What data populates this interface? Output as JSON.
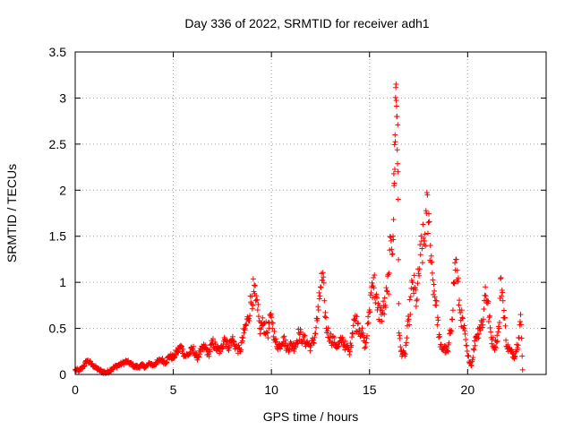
{
  "chart_data": {
    "type": "scatter",
    "title": "Day 336 of 2022, SRMTID for receiver adh1",
    "xlabel": "GPS time / hours",
    "ylabel": "SRMTID / TECUs",
    "xlim": [
      0,
      24
    ],
    "ylim": [
      0,
      3.5
    ],
    "x_ticks": [
      0,
      5,
      10,
      15,
      20
    ],
    "y_ticks": [
      0,
      0.5,
      1,
      1.5,
      2,
      2.5,
      3,
      3.5
    ],
    "x_tick_labels": [
      "0",
      "5",
      "10",
      "15",
      "20"
    ],
    "y_tick_labels": [
      "0",
      "0.5",
      "1",
      "1.5",
      "2",
      "2.5",
      "3",
      "3.5"
    ],
    "grid": true,
    "marker": "+",
    "color": "#ff0000",
    "series": [
      {
        "name": "adh1",
        "x": [
          0.0,
          0.2,
          0.4,
          0.6,
          0.8,
          1.0,
          1.2,
          1.4,
          1.6,
          1.8,
          2.0,
          2.2,
          2.4,
          2.6,
          2.8,
          3.0,
          3.2,
          3.4,
          3.6,
          3.8,
          4.0,
          4.2,
          4.4,
          4.6,
          4.8,
          5.0,
          5.2,
          5.4,
          5.6,
          5.8,
          6.0,
          6.2,
          6.4,
          6.6,
          6.8,
          7.0,
          7.2,
          7.4,
          7.6,
          7.8,
          8.0,
          8.2,
          8.4,
          8.6,
          8.8,
          9.0,
          9.1,
          9.2,
          9.3,
          9.4,
          9.6,
          9.8,
          10.0,
          10.2,
          10.4,
          10.6,
          10.8,
          11.0,
          11.2,
          11.4,
          11.6,
          11.8,
          12.0,
          12.2,
          12.4,
          12.5,
          12.6,
          12.7,
          12.8,
          13.0,
          13.2,
          13.4,
          13.6,
          13.8,
          14.0,
          14.2,
          14.4,
          14.6,
          14.8,
          15.0,
          15.1,
          15.2,
          15.4,
          15.6,
          15.8,
          15.9,
          16.0,
          16.1,
          16.2,
          16.25,
          16.3,
          16.35,
          16.4,
          16.45,
          16.5,
          16.6,
          16.8,
          17.0,
          17.2,
          17.4,
          17.6,
          17.8,
          17.9,
          18.0,
          18.1,
          18.2,
          18.4,
          18.6,
          18.8,
          19.0,
          19.2,
          19.3,
          19.4,
          19.6,
          19.8,
          20.0,
          20.2,
          20.4,
          20.6,
          20.8,
          20.9,
          21.0,
          21.2,
          21.4,
          21.6,
          21.7,
          21.8,
          22.0,
          22.2,
          22.4,
          22.6,
          22.7,
          22.8
        ],
        "y": [
          0.05,
          0.04,
          0.08,
          0.15,
          0.12,
          0.08,
          0.05,
          0.03,
          0.02,
          0.05,
          0.08,
          0.1,
          0.12,
          0.14,
          0.12,
          0.09,
          0.08,
          0.1,
          0.08,
          0.12,
          0.1,
          0.14,
          0.16,
          0.13,
          0.2,
          0.18,
          0.25,
          0.3,
          0.2,
          0.22,
          0.28,
          0.18,
          0.25,
          0.3,
          0.22,
          0.35,
          0.28,
          0.25,
          0.4,
          0.3,
          0.38,
          0.3,
          0.25,
          0.45,
          0.6,
          0.85,
          0.9,
          0.8,
          0.7,
          0.5,
          0.55,
          0.45,
          0.62,
          0.35,
          0.3,
          0.4,
          0.28,
          0.32,
          0.3,
          0.45,
          0.38,
          0.35,
          0.3,
          0.4,
          0.7,
          0.95,
          1.02,
          0.8,
          0.5,
          0.4,
          0.35,
          0.3,
          0.38,
          0.3,
          0.25,
          0.6,
          0.55,
          0.45,
          0.3,
          0.7,
          0.95,
          1.05,
          0.7,
          0.65,
          0.75,
          0.9,
          1.1,
          1.45,
          1.5,
          2.05,
          2.6,
          3.15,
          2.8,
          2.2,
          0.45,
          0.25,
          0.2,
          0.6,
          1.0,
          0.8,
          1.3,
          1.45,
          1.75,
          1.65,
          1.4,
          1.1,
          0.75,
          0.3,
          0.28,
          0.25,
          0.6,
          1.0,
          1.25,
          0.7,
          0.5,
          0.2,
          0.1,
          0.4,
          0.5,
          0.6,
          0.95,
          0.8,
          0.4,
          0.3,
          0.5,
          1.05,
          0.8,
          0.3,
          0.25,
          0.2,
          0.4,
          0.65,
          0.05
        ],
        "x_dense_note": "sampled points approximating the dense scatter"
      }
    ]
  }
}
